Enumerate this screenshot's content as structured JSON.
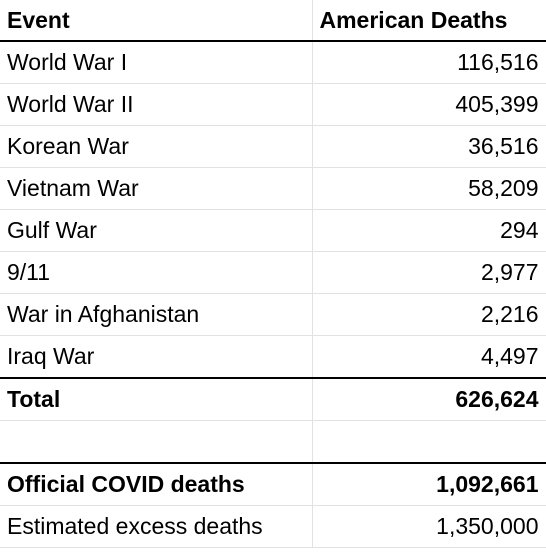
{
  "table": {
    "headers": {
      "event": "Event",
      "deaths": "American Deaths"
    },
    "rows": [
      {
        "event": "World War I",
        "deaths": "116,516"
      },
      {
        "event": "World War II",
        "deaths": "405,399"
      },
      {
        "event": "Korean War",
        "deaths": "36,516"
      },
      {
        "event": "Vietnam War",
        "deaths": "58,209"
      },
      {
        "event": "Gulf War",
        "deaths": "294"
      },
      {
        "event": "9/11",
        "deaths": "2,977"
      },
      {
        "event": "War in Afghanistan",
        "deaths": "2,216"
      },
      {
        "event": "Iraq War",
        "deaths": "4,497"
      }
    ],
    "total": {
      "label": "Total",
      "value": "626,624"
    },
    "covid": {
      "official": {
        "label": "Official COVID deaths",
        "value": "1,092,661"
      },
      "excess": {
        "label": "Estimated excess deaths",
        "value": "1,350,000"
      }
    }
  }
}
